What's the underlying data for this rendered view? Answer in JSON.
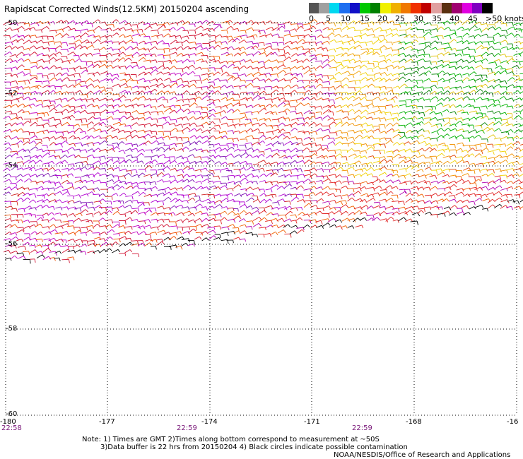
{
  "title": "Rapidscat Corrected Winds(12.5KM) 20150204 ascending",
  "legend": {
    "colors": [
      "#555555",
      "#a0a0a0",
      "#00d8f0",
      "#1e6ef0",
      "#1010c8",
      "#00c800",
      "#008000",
      "#f0f000",
      "#f0b000",
      "#f07800",
      "#f03000",
      "#c00000",
      "#e0a0a0",
      "#5a3010",
      "#a00070",
      "#e000e0",
      "#8000c0",
      "#000000"
    ],
    "labels": [
      "0",
      "5",
      "10",
      "15",
      "20",
      "25",
      "30",
      "35",
      "40",
      "45",
      ">50 knots"
    ]
  },
  "axes": {
    "lon_ticks": [
      "-180",
      "-177",
      "-174",
      "-171",
      "-168",
      "-16"
    ],
    "lat_ticks": [
      "-50",
      "-52",
      "-54",
      "-56",
      "-58",
      "-60"
    ]
  },
  "times": [
    "22:58",
    "22:59",
    "22:59"
  ],
  "notes": {
    "line1": "Note: 1) Times are GMT 2)Times along bottom correspond to measurement at ~50S",
    "line2": "3)Data buffer is 22 hrs from 20150204 4) Black circles indicate possible contamination",
    "credit": "NOAA/NESDIS/Office of Research and Applications"
  }
}
